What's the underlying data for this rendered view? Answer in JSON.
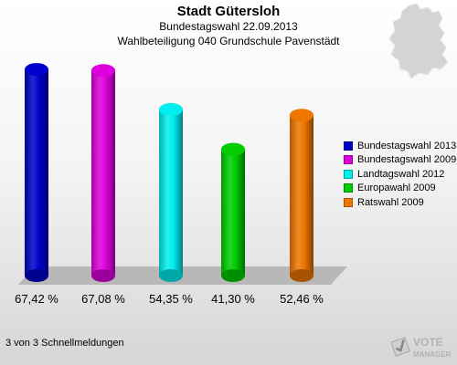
{
  "header": {
    "title": "Stadt Gütersloh",
    "subtitle": "Bundestagswahl 22.09.2013",
    "subtitle2": "Wahlbeteiligung 040 Grundschule Pavenstädt"
  },
  "chart_data": {
    "type": "bar",
    "categories": [
      "Bundestagswahl 2013",
      "Bundestagswahl 2009",
      "Landtagswahl 2012",
      "Europawahl 2009",
      "Ratswahl 2009"
    ],
    "values": [
      67.42,
      67.08,
      54.35,
      41.3,
      52.46
    ],
    "value_labels": [
      "67,42 %",
      "67,08 %",
      "54,35 %",
      "41,30 %",
      "52,46 %"
    ],
    "colors": [
      "#0000cc",
      "#dd00dd",
      "#00eeee",
      "#00cc00",
      "#ee7700"
    ],
    "legend_position": "right",
    "grid": false
  },
  "footer": {
    "note": "3 von 3 Schnellmeldungen",
    "logo_top": "VOTE",
    "logo_bottom": "MANAGER"
  }
}
